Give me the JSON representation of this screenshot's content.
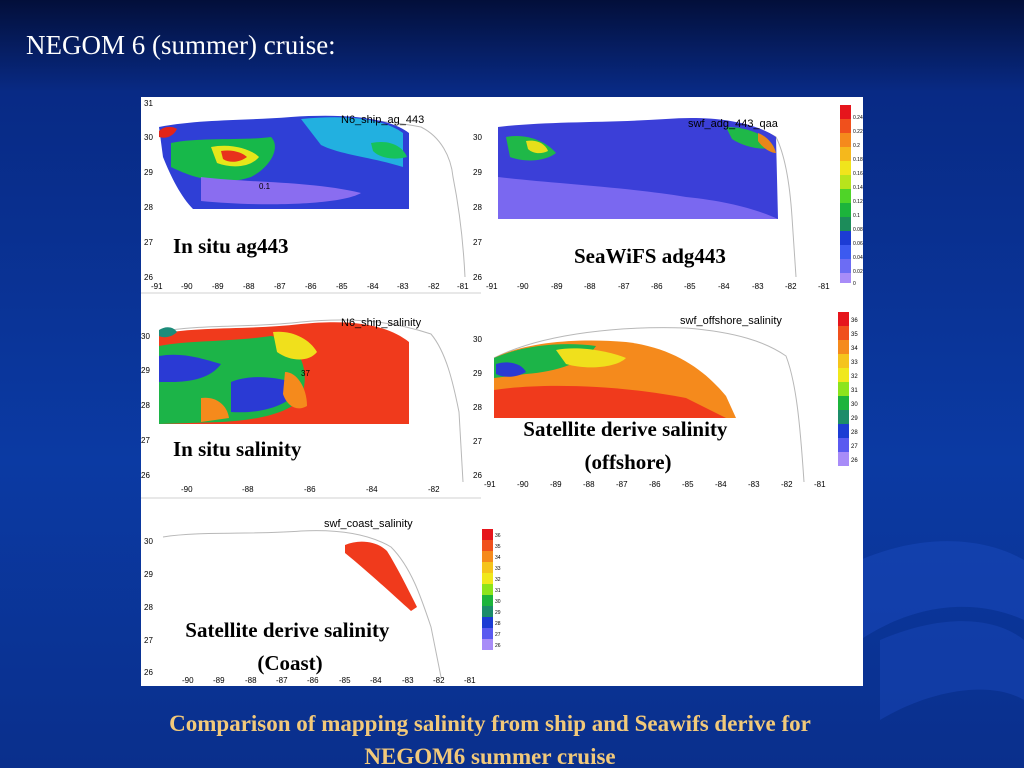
{
  "slide": {
    "title": "NEGOM 6 (summer) cruise:",
    "caption_line1": "Comparison of mapping salinity from ship and Seawifs derive for",
    "caption_line2": "NEGOM6 summer cruise"
  },
  "colors": {
    "background_top": "#04154f",
    "background_mid": "#0a2f93",
    "caption": "#f2c97a"
  },
  "panels": [
    {
      "id": "p1",
      "name": "N6_ship_ag_443",
      "label": "In situ ag443",
      "yticks": [
        "31",
        "30",
        "29",
        "28",
        "27",
        "26"
      ],
      "xticks": [
        "-91",
        "-90",
        "-89",
        "-88",
        "-87",
        "-86",
        "-85",
        "-84",
        "-83",
        "-82",
        "-81"
      ],
      "contour": "0.1"
    },
    {
      "id": "p2",
      "name": "swf_adg_443_qaa",
      "label": "SeaWiFS adg443",
      "yticks": [
        "30",
        "29",
        "28",
        "27",
        "26"
      ],
      "xticks": [
        "-91",
        "-90",
        "-89",
        "-88",
        "-87",
        "-86",
        "-85",
        "-84",
        "-83",
        "-82",
        "-81"
      ]
    },
    {
      "id": "p3",
      "name": "N6_ship_salinity",
      "label": "In situ salinity",
      "yticks": [
        "30",
        "29",
        "28",
        "27",
        "26"
      ],
      "xticks": [
        "-90",
        "-88",
        "-86",
        "-84",
        "-82"
      ],
      "contour": "37"
    },
    {
      "id": "p4",
      "name": "swf_offshore_salinity",
      "label_line1": "Satellite derive salinity",
      "label_line2": "(offshore)",
      "yticks": [
        "30",
        "29",
        "28",
        "27",
        "26"
      ],
      "xticks": [
        "-91",
        "-90",
        "-89",
        "-88",
        "-87",
        "-86",
        "-85",
        "-84",
        "-83",
        "-82",
        "-81"
      ]
    },
    {
      "id": "p5",
      "name": "swf_coast_salinity",
      "label_line1": "Satellite derive salinity",
      "label_line2": "(Coast)",
      "yticks": [
        "30",
        "29",
        "28",
        "27",
        "26"
      ],
      "xticks": [
        "-90",
        "-89",
        "-88",
        "-87",
        "-86",
        "-85",
        "-84",
        "-83",
        "-82",
        "-81"
      ]
    }
  ],
  "colorbars": {
    "adg443": [
      "0.24",
      "0.22",
      "0.2",
      "0.18",
      "0.16",
      "0.14",
      "0.12",
      "0.1",
      "0.08",
      "0.06",
      "0.04",
      "0.02",
      "0"
    ],
    "salinity": [
      "36",
      "35",
      "34",
      "33",
      "32",
      "31",
      "30",
      "29",
      "28",
      "27",
      "26"
    ]
  }
}
